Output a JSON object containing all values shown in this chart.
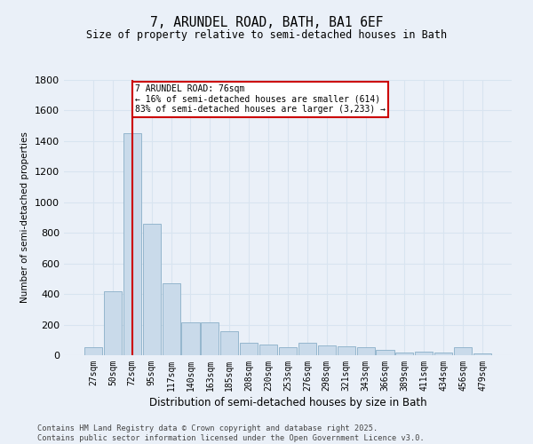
{
  "title": "7, ARUNDEL ROAD, BATH, BA1 6EF",
  "subtitle": "Size of property relative to semi-detached houses in Bath",
  "xlabel": "Distribution of semi-detached houses by size in Bath",
  "ylabel": "Number of semi-detached properties",
  "bar_color": "#c9daea",
  "bar_edge_color": "#8aafc8",
  "background_color": "#eaf0f8",
  "grid_color": "#d8e4f0",
  "categories": [
    "27sqm",
    "50sqm",
    "72sqm",
    "95sqm",
    "117sqm",
    "140sqm",
    "163sqm",
    "185sqm",
    "208sqm",
    "230sqm",
    "253sqm",
    "276sqm",
    "298sqm",
    "321sqm",
    "343sqm",
    "366sqm",
    "389sqm",
    "411sqm",
    "434sqm",
    "456sqm",
    "479sqm"
  ],
  "values": [
    55,
    420,
    1450,
    860,
    470,
    215,
    215,
    155,
    80,
    70,
    50,
    80,
    65,
    60,
    50,
    35,
    20,
    25,
    15,
    50,
    10
  ],
  "ylim": [
    0,
    1800
  ],
  "yticks": [
    0,
    200,
    400,
    600,
    800,
    1000,
    1200,
    1400,
    1600,
    1800
  ],
  "property_line_x": 2.0,
  "annotation_title": "7 ARUNDEL ROAD: 76sqm",
  "annotation_line1": "← 16% of semi-detached houses are smaller (614)",
  "annotation_line2": "83% of semi-detached houses are larger (3,233) →",
  "annotation_box_color": "#ffffff",
  "annotation_box_edge": "#cc0000",
  "vline_color": "#cc0000",
  "footer_line1": "Contains HM Land Registry data © Crown copyright and database right 2025.",
  "footer_line2": "Contains public sector information licensed under the Open Government Licence v3.0."
}
